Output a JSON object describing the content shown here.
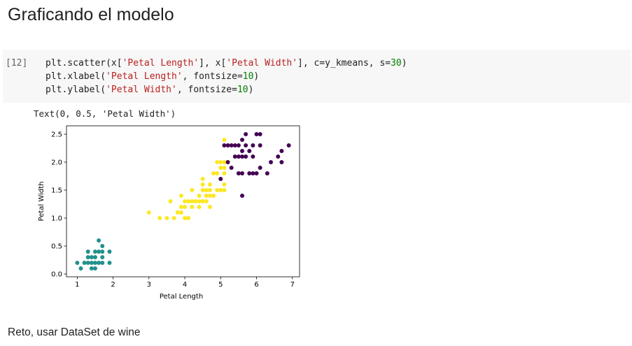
{
  "heading": "Graficando el modelo",
  "cell": {
    "prompt": "[12]",
    "lines": [
      [
        {
          "t": "plt.scatter(x[",
          "k": "plain"
        },
        {
          "t": "'Petal Length'",
          "k": "str"
        },
        {
          "t": "], x[",
          "k": "plain"
        },
        {
          "t": "'Petal Width'",
          "k": "str"
        },
        {
          "t": "], c=y_kmeans, s=",
          "k": "plain"
        },
        {
          "t": "30",
          "k": "num"
        },
        {
          "t": ")",
          "k": "plain"
        }
      ],
      [
        {
          "t": "plt.xlabel(",
          "k": "plain"
        },
        {
          "t": "'Petal Length'",
          "k": "str"
        },
        {
          "t": ", fontsize=",
          "k": "plain"
        },
        {
          "t": "10",
          "k": "num"
        },
        {
          "t": ")",
          "k": "plain"
        }
      ],
      [
        {
          "t": "plt.ylabel(",
          "k": "plain"
        },
        {
          "t": "'Petal Width'",
          "k": "str"
        },
        {
          "t": ", fontsize=",
          "k": "plain"
        },
        {
          "t": "10",
          "k": "num"
        },
        {
          "t": ")",
          "k": "plain"
        }
      ]
    ]
  },
  "output_text": "Text(0, 0.5, 'Petal Width')",
  "paragraph": "Reto, usar DataSet de wine",
  "colors": {
    "cluster_purple": "#440154",
    "cluster_teal": "#21918c",
    "cluster_yellow": "#fde725",
    "string": "#ba2121",
    "number": "#008000"
  },
  "chart_data": {
    "type": "scatter",
    "xlabel": "Petal Length",
    "ylabel": "Petal Width",
    "xlim": [
      0.7,
      7.2
    ],
    "ylim": [
      -0.05,
      2.65
    ],
    "xticks": [
      1,
      2,
      3,
      4,
      5,
      6,
      7
    ],
    "xtick_labels": [
      "1",
      "2",
      "3",
      "4",
      "5",
      "6",
      "7"
    ],
    "yticks": [
      0.0,
      0.5,
      1.0,
      1.5,
      2.0,
      2.5
    ],
    "ytick_labels": [
      "0.0",
      "0.5",
      "1.0",
      "1.5",
      "2.0",
      "2.5"
    ],
    "grid": false,
    "series": [
      {
        "color": "#21918c",
        "points": [
          [
            1.0,
            0.2
          ],
          [
            1.1,
            0.1
          ],
          [
            1.2,
            0.2
          ],
          [
            1.3,
            0.2
          ],
          [
            1.3,
            0.3
          ],
          [
            1.3,
            0.4
          ],
          [
            1.4,
            0.1
          ],
          [
            1.4,
            0.2
          ],
          [
            1.4,
            0.3
          ],
          [
            1.5,
            0.1
          ],
          [
            1.5,
            0.2
          ],
          [
            1.5,
            0.3
          ],
          [
            1.5,
            0.4
          ],
          [
            1.6,
            0.2
          ],
          [
            1.6,
            0.4
          ],
          [
            1.6,
            0.6
          ],
          [
            1.7,
            0.2
          ],
          [
            1.7,
            0.3
          ],
          [
            1.7,
            0.4
          ],
          [
            1.7,
            0.5
          ],
          [
            1.9,
            0.2
          ],
          [
            1.9,
            0.4
          ]
        ]
      },
      {
        "color": "#fde725",
        "points": [
          [
            3.0,
            1.1
          ],
          [
            3.3,
            1.0
          ],
          [
            3.5,
            1.0
          ],
          [
            3.6,
            1.3
          ],
          [
            3.7,
            1.0
          ],
          [
            3.8,
            1.1
          ],
          [
            3.9,
            1.1
          ],
          [
            3.9,
            1.2
          ],
          [
            3.9,
            1.4
          ],
          [
            4.0,
            1.0
          ],
          [
            4.0,
            1.2
          ],
          [
            4.0,
            1.3
          ],
          [
            4.1,
            1.0
          ],
          [
            4.1,
            1.3
          ],
          [
            4.2,
            1.2
          ],
          [
            4.2,
            1.3
          ],
          [
            4.2,
            1.5
          ],
          [
            4.3,
            1.3
          ],
          [
            4.4,
            1.2
          ],
          [
            4.4,
            1.3
          ],
          [
            4.4,
            1.4
          ],
          [
            4.5,
            1.3
          ],
          [
            4.5,
            1.5
          ],
          [
            4.5,
            1.6
          ],
          [
            4.5,
            1.7
          ],
          [
            4.6,
            1.3
          ],
          [
            4.6,
            1.4
          ],
          [
            4.6,
            1.5
          ],
          [
            4.7,
            1.2
          ],
          [
            4.7,
            1.4
          ],
          [
            4.7,
            1.5
          ],
          [
            4.7,
            1.6
          ],
          [
            4.8,
            1.4
          ],
          [
            4.8,
            1.8
          ],
          [
            4.9,
            1.5
          ],
          [
            4.9,
            1.8
          ],
          [
            4.9,
            2.0
          ],
          [
            5.0,
            1.5
          ],
          [
            5.0,
            1.7
          ],
          [
            5.0,
            1.9
          ],
          [
            5.0,
            2.0
          ],
          [
            5.1,
            1.5
          ],
          [
            5.1,
            1.6
          ],
          [
            5.1,
            1.8
          ],
          [
            5.1,
            1.9
          ],
          [
            5.1,
            2.0
          ],
          [
            5.1,
            2.4
          ],
          [
            5.2,
            2.0
          ]
        ]
      },
      {
        "color": "#440154",
        "points": [
          [
            5.0,
            1.7
          ],
          [
            5.1,
            2.3
          ],
          [
            5.2,
            2.0
          ],
          [
            5.2,
            2.3
          ],
          [
            5.3,
            1.9
          ],
          [
            5.3,
            2.3
          ],
          [
            5.4,
            2.1
          ],
          [
            5.4,
            2.3
          ],
          [
            5.5,
            1.8
          ],
          [
            5.5,
            2.1
          ],
          [
            5.5,
            2.3
          ],
          [
            5.6,
            1.4
          ],
          [
            5.6,
            1.8
          ],
          [
            5.6,
            2.1
          ],
          [
            5.6,
            2.2
          ],
          [
            5.6,
            2.4
          ],
          [
            5.7,
            2.1
          ],
          [
            5.7,
            2.3
          ],
          [
            5.7,
            2.5
          ],
          [
            5.8,
            1.8
          ],
          [
            5.8,
            2.2
          ],
          [
            5.9,
            1.8
          ],
          [
            5.9,
            2.1
          ],
          [
            5.9,
            2.3
          ],
          [
            6.0,
            1.8
          ],
          [
            6.0,
            2.5
          ],
          [
            6.1,
            1.9
          ],
          [
            6.1,
            2.3
          ],
          [
            6.1,
            2.5
          ],
          [
            6.3,
            1.8
          ],
          [
            6.4,
            2.0
          ],
          [
            6.6,
            2.1
          ],
          [
            6.7,
            2.0
          ],
          [
            6.7,
            2.2
          ],
          [
            6.9,
            2.3
          ]
        ]
      }
    ]
  }
}
